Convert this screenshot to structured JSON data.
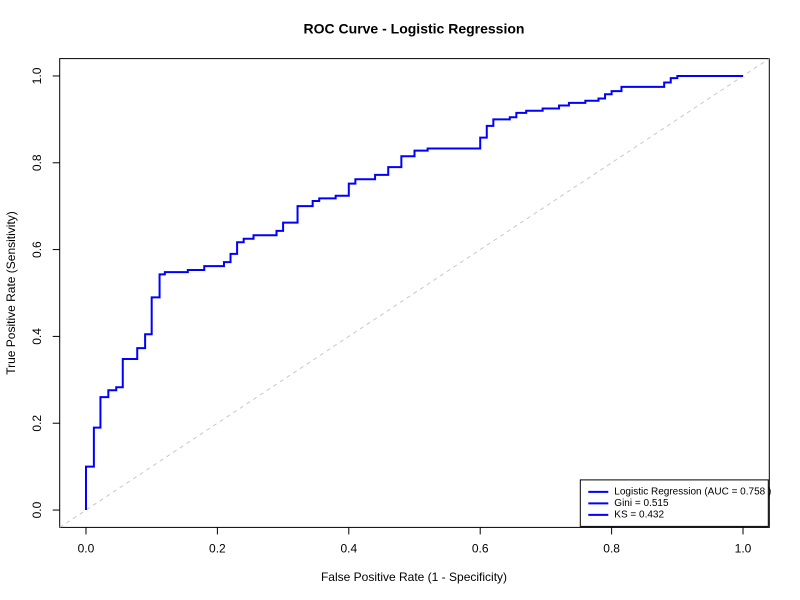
{
  "chart_data": {
    "type": "line",
    "title": "ROC Curve - Logistic Regression",
    "x_label": "False Positive Rate (1 - Specificity)",
    "y_label": "True Positive Rate (Sensitivity)",
    "x": [
      0,
      0,
      0.012,
      0.012,
      0.022,
      0.022,
      0.034,
      0.034,
      0.046,
      0.046,
      0.056,
      0.056,
      0.078,
      0.078,
      0.09,
      0.09,
      0.1,
      0.1,
      0.112,
      0.112,
      0.12,
      0.12,
      0.155,
      0.155,
      0.18,
      0.18,
      0.21,
      0.21,
      0.22,
      0.22,
      0.23,
      0.23,
      0.24,
      0.24,
      0.255,
      0.255,
      0.29,
      0.29,
      0.3,
      0.3,
      0.322,
      0.322,
      0.345,
      0.345,
      0.355,
      0.355,
      0.38,
      0.38,
      0.4,
      0.4,
      0.41,
      0.41,
      0.44,
      0.44,
      0.46,
      0.46,
      0.48,
      0.48,
      0.5,
      0.5,
      0.52,
      0.52,
      0.6,
      0.6,
      0.61,
      0.61,
      0.62,
      0.62,
      0.645,
      0.645,
      0.655,
      0.655,
      0.67,
      0.67,
      0.695,
      0.695,
      0.72,
      0.72,
      0.735,
      0.735,
      0.76,
      0.76,
      0.78,
      0.78,
      0.79,
      0.79,
      0.8,
      0.8,
      0.815,
      0.815,
      0.88,
      0.88,
      0.89,
      0.89,
      0.9,
      0.9,
      1
    ],
    "series": [
      {
        "name": "Logistic Regression (AUC = 0.758 )",
        "color": "#0000ff",
        "values": [
          0,
          0.1,
          0.1,
          0.19,
          0.19,
          0.26,
          0.26,
          0.276,
          0.276,
          0.283,
          0.283,
          0.348,
          0.348,
          0.373,
          0.373,
          0.405,
          0.405,
          0.49,
          0.49,
          0.543,
          0.543,
          0.548,
          0.548,
          0.553,
          0.553,
          0.562,
          0.562,
          0.571,
          0.571,
          0.59,
          0.59,
          0.617,
          0.617,
          0.625,
          0.625,
          0.633,
          0.633,
          0.643,
          0.643,
          0.662,
          0.662,
          0.7,
          0.7,
          0.712,
          0.712,
          0.718,
          0.718,
          0.724,
          0.724,
          0.752,
          0.752,
          0.762,
          0.762,
          0.772,
          0.772,
          0.79,
          0.79,
          0.815,
          0.815,
          0.828,
          0.828,
          0.833,
          0.833,
          0.858,
          0.858,
          0.885,
          0.885,
          0.9,
          0.9,
          0.905,
          0.905,
          0.915,
          0.915,
          0.92,
          0.92,
          0.925,
          0.925,
          0.932,
          0.932,
          0.938,
          0.938,
          0.943,
          0.943,
          0.948,
          0.948,
          0.958,
          0.958,
          0.965,
          0.965,
          0.975,
          0.975,
          0.985,
          0.985,
          0.995,
          0.995,
          1,
          1
        ]
      }
    ],
    "legend_notes": [
      "Gini = 0.515",
      "KS = 0.432"
    ],
    "legend_position": "bottom-right",
    "reference_color": "#c8c8c8",
    "xlim": [
      -0.04,
      1.04
    ],
    "ylim": [
      -0.04,
      1.04
    ],
    "xticks": [
      {
        "value": 0,
        "label": "0.0"
      },
      0.2,
      0.4,
      0.6,
      0.8,
      {
        "value": 1,
        "label": "1.0"
      }
    ],
    "yticks": [
      {
        "value": 0,
        "label": "0.0"
      },
      0.2,
      0.4,
      0.6,
      0.8,
      {
        "value": 1,
        "label": "1.0"
      }
    ]
  }
}
